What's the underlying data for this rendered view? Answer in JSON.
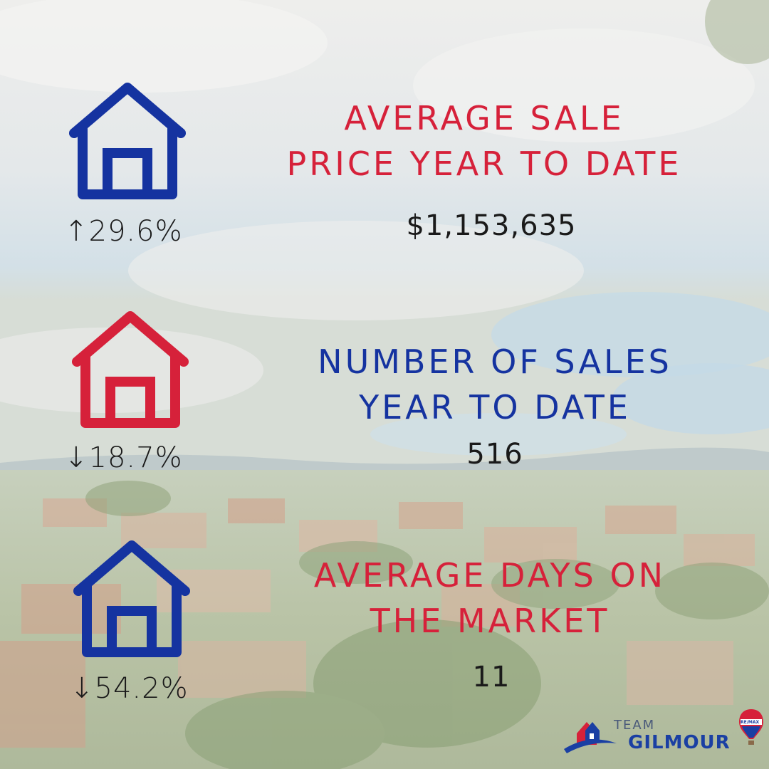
{
  "colors": {
    "red": "#d6213a",
    "blue": "#1533a0",
    "text": "#1a1a1a"
  },
  "stats": [
    {
      "icon": "house-icon",
      "icon_color": "#1533a0",
      "change": "↑29.6%",
      "title_line1": "AVERAGE SALE",
      "title_line2": "PRICE YEAR TO DATE",
      "title_color": "#d6213a",
      "value": "$1,153,635"
    },
    {
      "icon": "house-icon",
      "icon_color": "#d6213a",
      "change": "↓18.7%",
      "title_line1": "NUMBER OF SALES",
      "title_line2": "YEAR TO DATE",
      "title_color": "#1533a0",
      "value": "516"
    },
    {
      "icon": "house-icon",
      "icon_color": "#1533a0",
      "change": "↓54.2%",
      "title_line1": "AVERAGE DAYS ON",
      "title_line2": "THE MARKET",
      "title_color": "#d6213a",
      "value": "11"
    }
  ],
  "logo": {
    "team": "TEAM",
    "name": "GILMOUR",
    "badge": "RE/MAX"
  }
}
